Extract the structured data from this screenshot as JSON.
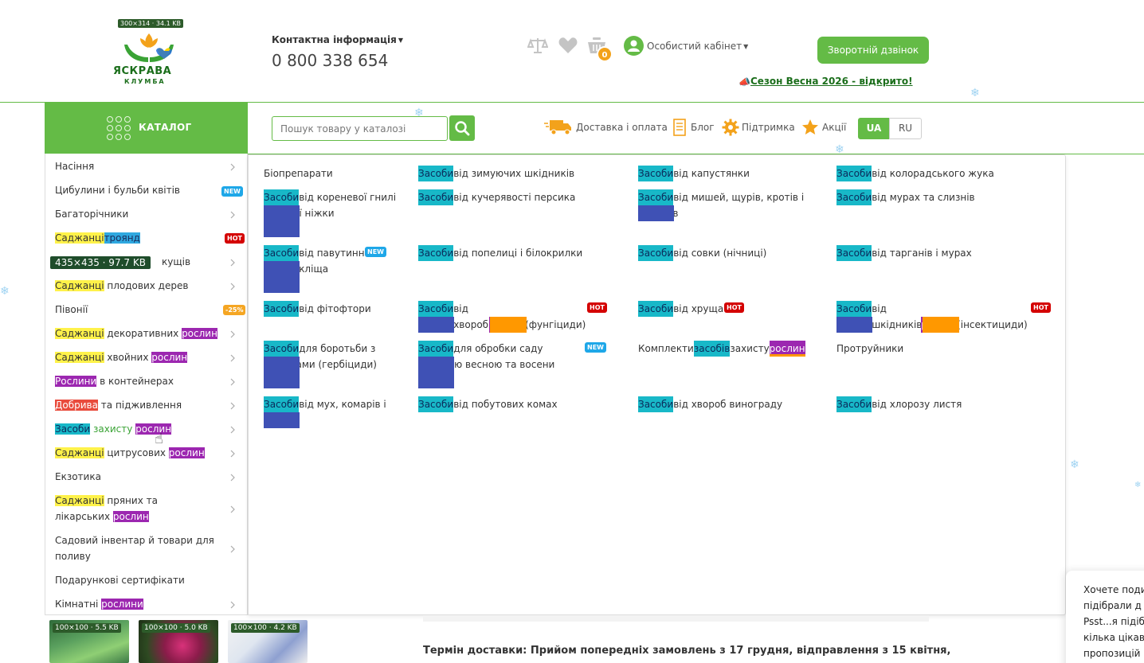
{
  "header": {
    "logo_text": "ЯСКРАВА",
    "logo_sub": "КЛУМБА",
    "logo_size": "300×314 · 34.1 KB",
    "contact_title": "Контактна інформація",
    "phone": "0 800 338 654",
    "cart_count": "0",
    "account_label": "Особистий кабінет",
    "callback_label": "Зворотній дзвінок",
    "season_link": "Сезон Весна 2026 - відкрито!"
  },
  "nav": {
    "catalog_label": "КАТАЛОГ",
    "search_placeholder": "Пошук товару у каталозі",
    "links": [
      "Доставка і оплата",
      "Блог",
      "Підтримка",
      "Акції"
    ],
    "lang_ua": "UA",
    "lang_ru": "RU"
  },
  "menu": {
    "items": [
      "Насіння",
      "Цибулини і бульби квітів",
      "Багаторічники",
      "Саджанці",
      "троянд",
      "кущів",
      "Саджанці",
      "плодових дерев",
      "Півонії",
      "Саджанці",
      "декоративних",
      "рослин",
      "Саджанці",
      "хвойних",
      "рослин",
      "Рослини",
      "в контейнерах",
      "Добрива",
      "та підживлення",
      "Засоби",
      "захисту",
      "рослин",
      "Саджанці",
      "цитрусових",
      "рослин",
      "Екзотика",
      "Саджанці",
      "пряних та лікарських",
      "рослин",
      "Садовий інвентар й товари для поливу",
      "Подарункові сертифікати",
      "Кімнатні",
      "рослини"
    ],
    "overlay_badge": "435×435 · 97.7 KB",
    "tags": {
      "new": "NEW",
      "hot": "HOT",
      "sale": "-25%"
    }
  },
  "panel": {
    "word": "Засоби",
    "plants": "рослин",
    "items": [
      "Біопрепарати",
      "від зимуючих шкідників",
      "від капустянки",
      "від колорадського жука",
      "від кореневої гнилі і чорної ніжки",
      "від кучерявості персика",
      "від мишей, щурів, кротів і сліпаків",
      "від мурах та слизнів",
      "від павутинного кліща",
      "від попелиці і білокрилки",
      "від совки (нічниці)",
      "від тарганів і мурах",
      "від фітофтори",
      "від хвороб",
      "(фунгіциди)",
      "від хруща",
      "від шкідників",
      "(інсектициди)",
      "для боротьби з бур'янами (гербіциди)",
      "для обробки саду ранньою весною та восени",
      "Комплекти",
      "засобів",
      "захисту",
      "Протруйники",
      "від мух, комарів і молі",
      "від побутових комах",
      "від хвороб винограду",
      "від хлорозу листя"
    ]
  },
  "bottom": {
    "thumbs": [
      "100×100 · 5.5 KB",
      "100×100 · 5.0 KB",
      "100×100 · 4.2 KB"
    ],
    "delivery": "Термін доставки: Прийом попередніх замовлень з 17 грудня, відправлення з 15 квітня,",
    "chat_lines": [
      "Хочете поди",
      "підібрали д",
      "Psst...я підіб",
      "кілька цікав",
      "пропозицій"
    ]
  },
  "colors": {
    "green": "#64bb46",
    "orange": "#f3a21b",
    "dark_green": "#1b6e1b"
  }
}
